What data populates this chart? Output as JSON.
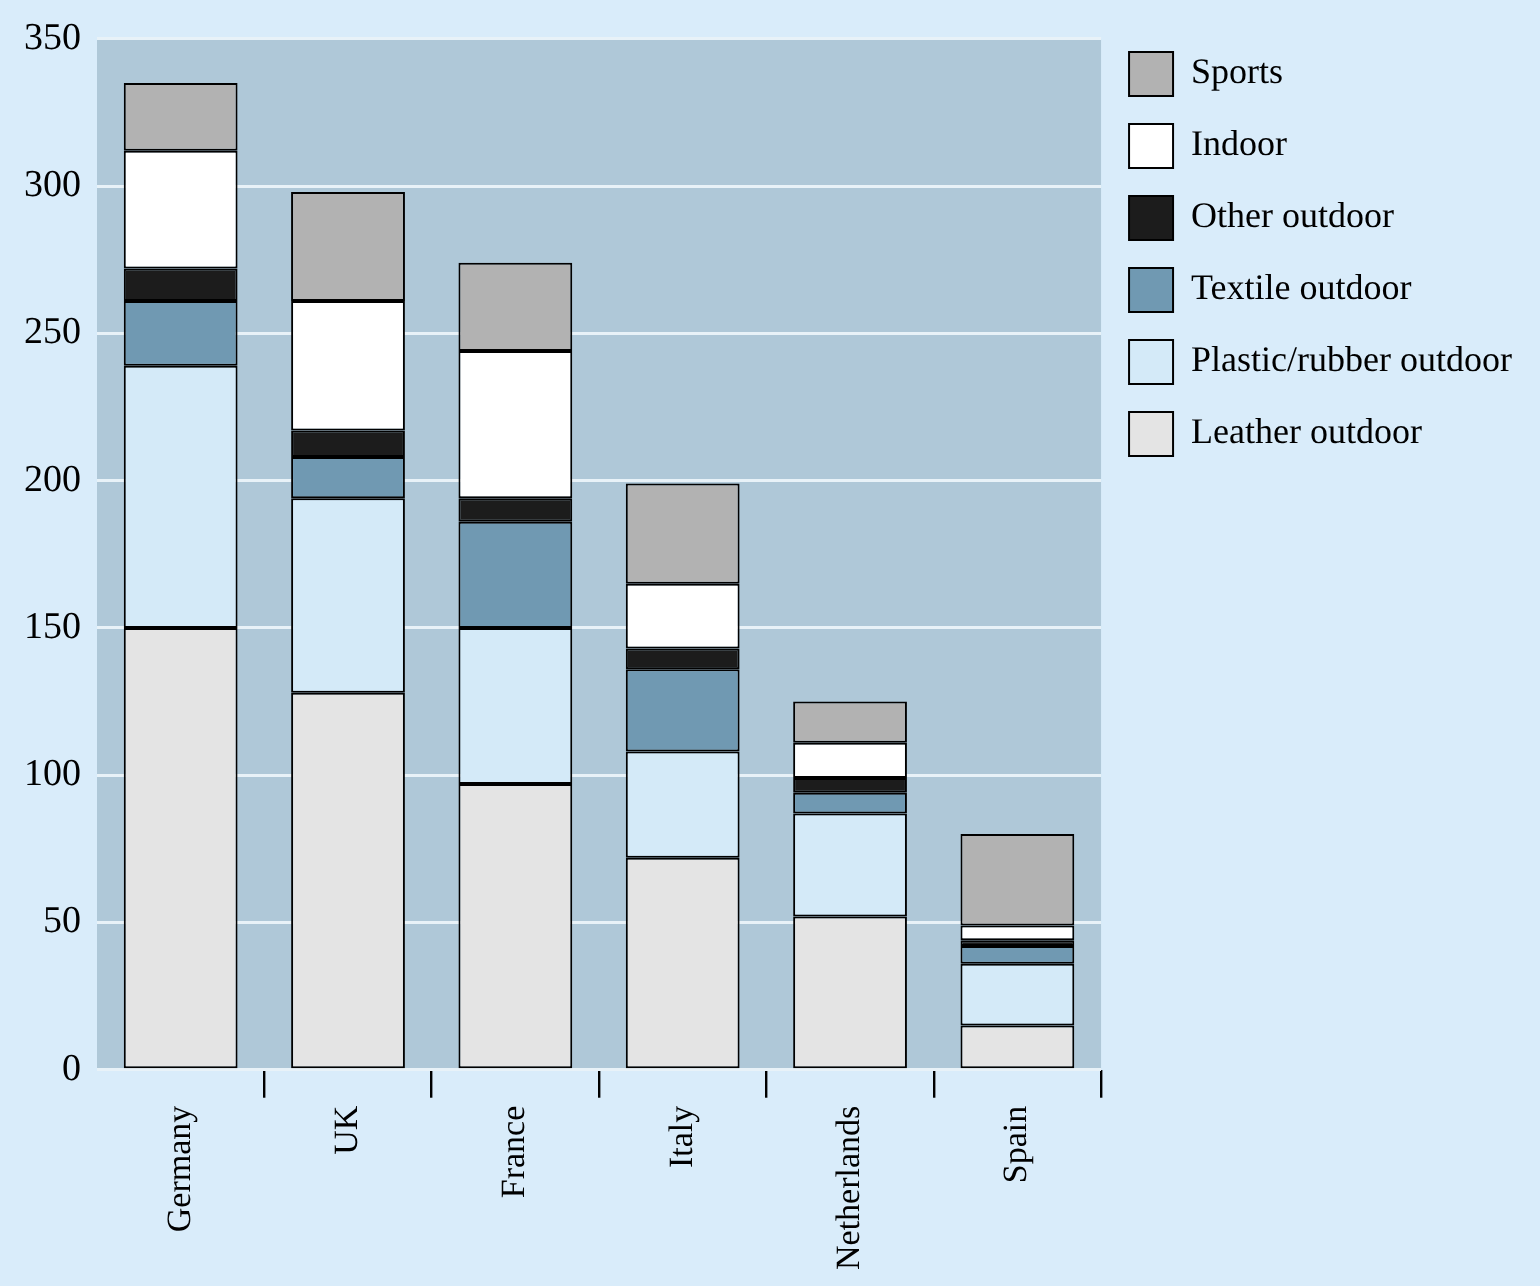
{
  "chart_data": {
    "type": "bar",
    "stacked": true,
    "categories": [
      "Germany",
      "UK",
      "France",
      "Italy",
      "Netherlands",
      "Spain"
    ],
    "series": [
      {
        "name": "Leather outdoor",
        "color": "#e4e4e4",
        "values": [
          150,
          128,
          97,
          72,
          52,
          15
        ]
      },
      {
        "name": "Plastic/rubber outdoor",
        "color": "#d4eaf8",
        "values": [
          89,
          66,
          53,
          36,
          35,
          21
        ]
      },
      {
        "name": "Textile outdoor",
        "color": "#7099b2",
        "values": [
          22,
          14,
          36,
          28,
          7,
          6
        ]
      },
      {
        "name": "Other outdoor",
        "color": "#1c1c1c",
        "values": [
          11,
          9,
          8,
          7,
          5,
          2
        ]
      },
      {
        "name": "Indoor",
        "color": "#ffffff",
        "values": [
          40,
          44,
          50,
          22,
          12,
          5
        ]
      },
      {
        "name": "Sports",
        "color": "#b2b2b2",
        "values": [
          23,
          37,
          30,
          34,
          14,
          31
        ]
      }
    ],
    "ylim": [
      0,
      350
    ],
    "yticks": [
      0,
      50,
      100,
      150,
      200,
      250,
      300,
      350
    ],
    "grid": "y",
    "legend": "top right"
  }
}
